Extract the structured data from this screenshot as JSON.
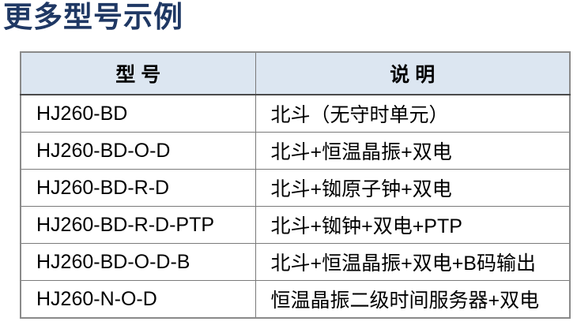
{
  "page": {
    "title": "更多型号示例"
  },
  "table": {
    "headers": [
      "型 号",
      "说 明"
    ],
    "rows": [
      {
        "model": "HJ260-BD",
        "description": "北斗（无守时单元）"
      },
      {
        "model": "HJ260-BD-O-D",
        "description": "北斗+恒温晶振+双电"
      },
      {
        "model": "HJ260-BD-R-D",
        "description": "北斗+铷原子钟+双电"
      },
      {
        "model": "HJ260-BD-R-D-PTP",
        "description": "北斗+铷钟+双电+PTP"
      },
      {
        "model": "HJ260-BD-O-D-B",
        "description": "北斗+恒温晶振+双电+B码输出"
      },
      {
        "model": "HJ260-N-O-D",
        "description": "恒温晶振二级时间服务器+双电"
      }
    ]
  },
  "colors": {
    "title_text": "#1F3864",
    "header_background": "#DCE6F1",
    "body_text": "#000000",
    "border": "#7A7A7A"
  }
}
